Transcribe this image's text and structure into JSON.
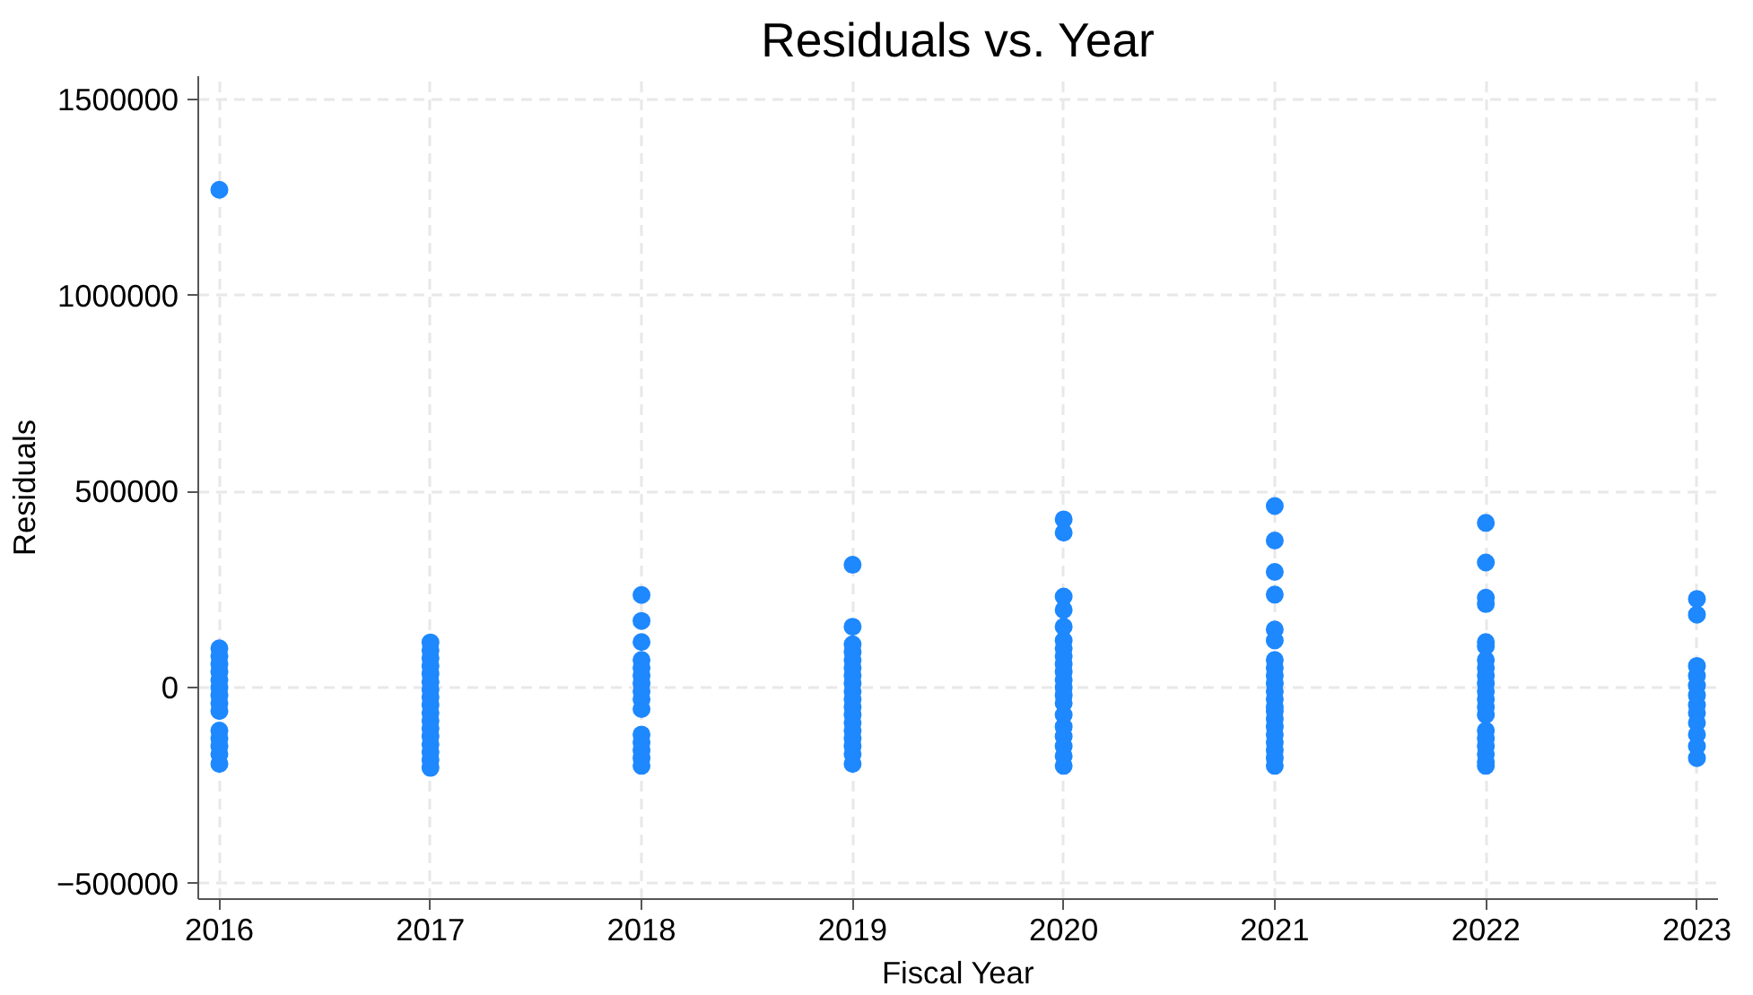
{
  "chart_data": {
    "type": "scatter",
    "title": "Residuals vs. Year",
    "xlabel": "Fiscal Year",
    "ylabel": "Residuals",
    "xlim": [
      2015.9,
      2023.1
    ],
    "ylim": [
      -540000,
      1560000
    ],
    "xticks": [
      2016,
      2017,
      2018,
      2019,
      2020,
      2021,
      2022,
      2023
    ],
    "yticks": [
      -500000,
      0,
      500000,
      1000000,
      1500000
    ],
    "grid": true,
    "marker": "circle",
    "series": [
      {
        "color": "#1e88ff",
        "x": [
          2016,
          2016,
          2016,
          2016,
          2016,
          2016,
          2016,
          2016,
          2016,
          2016,
          2016,
          2016,
          2016,
          2016,
          2016,
          2017,
          2017,
          2017,
          2017,
          2017,
          2017,
          2017,
          2017,
          2017,
          2017,
          2017,
          2017,
          2017,
          2017,
          2017,
          2017,
          2017,
          2018,
          2018,
          2018,
          2018,
          2018,
          2018,
          2018,
          2018,
          2018,
          2018,
          2018,
          2018,
          2018,
          2018,
          2018,
          2019,
          2019,
          2019,
          2019,
          2019,
          2019,
          2019,
          2019,
          2019,
          2019,
          2019,
          2019,
          2019,
          2019,
          2019,
          2019,
          2019,
          2019,
          2020,
          2020,
          2020,
          2020,
          2020,
          2020,
          2020,
          2020,
          2020,
          2020,
          2020,
          2020,
          2020,
          2020,
          2020,
          2020,
          2020,
          2020,
          2020,
          2020,
          2021,
          2021,
          2021,
          2021,
          2021,
          2021,
          2021,
          2021,
          2021,
          2021,
          2021,
          2021,
          2021,
          2021,
          2021,
          2021,
          2021,
          2021,
          2021,
          2021,
          2021,
          2022,
          2022,
          2022,
          2022,
          2022,
          2022,
          2022,
          2022,
          2022,
          2022,
          2022,
          2022,
          2022,
          2022,
          2022,
          2022,
          2022,
          2022,
          2022,
          2022,
          2023,
          2023,
          2023,
          2023,
          2023,
          2023,
          2023,
          2023,
          2023,
          2023,
          2023,
          2023
        ],
        "values": [
          1270000,
          100000,
          80000,
          60000,
          40000,
          20000,
          0,
          -20000,
          -40000,
          -60000,
          -110000,
          -130000,
          -150000,
          -170000,
          -195000,
          115000,
          95000,
          75000,
          55000,
          35000,
          15000,
          -5000,
          -25000,
          -45000,
          -65000,
          -85000,
          -105000,
          -125000,
          -145000,
          -165000,
          -185000,
          -205000,
          236000,
          170000,
          116000,
          70000,
          50000,
          30000,
          10000,
          -10000,
          -30000,
          -55000,
          -120000,
          -140000,
          -160000,
          -180000,
          -200000,
          313000,
          155000,
          110000,
          90000,
          70000,
          50000,
          30000,
          10000,
          -10000,
          -30000,
          -50000,
          -70000,
          -90000,
          -110000,
          -130000,
          -150000,
          -170000,
          -195000,
          429000,
          395000,
          232000,
          198000,
          155000,
          120000,
          100000,
          80000,
          60000,
          40000,
          20000,
          0,
          -20000,
          -40000,
          -70000,
          -100000,
          -125000,
          -150000,
          -175000,
          -200000,
          463000,
          375000,
          295000,
          237000,
          148000,
          120000,
          70000,
          50000,
          30000,
          10000,
          -10000,
          -30000,
          -50000,
          -80000,
          -100000,
          -120000,
          -140000,
          -160000,
          -180000,
          -200000,
          -60000,
          420000,
          319000,
          229000,
          213000,
          116000,
          105000,
          70000,
          50000,
          30000,
          10000,
          -10000,
          -30000,
          -50000,
          -70000,
          -110000,
          -130000,
          -150000,
          -170000,
          -190000,
          -200000,
          226000,
          186000,
          55000,
          30000,
          5000,
          -20000,
          -45000,
          -65000,
          -90000,
          -120000,
          -150000,
          -180000
        ]
      }
    ]
  }
}
